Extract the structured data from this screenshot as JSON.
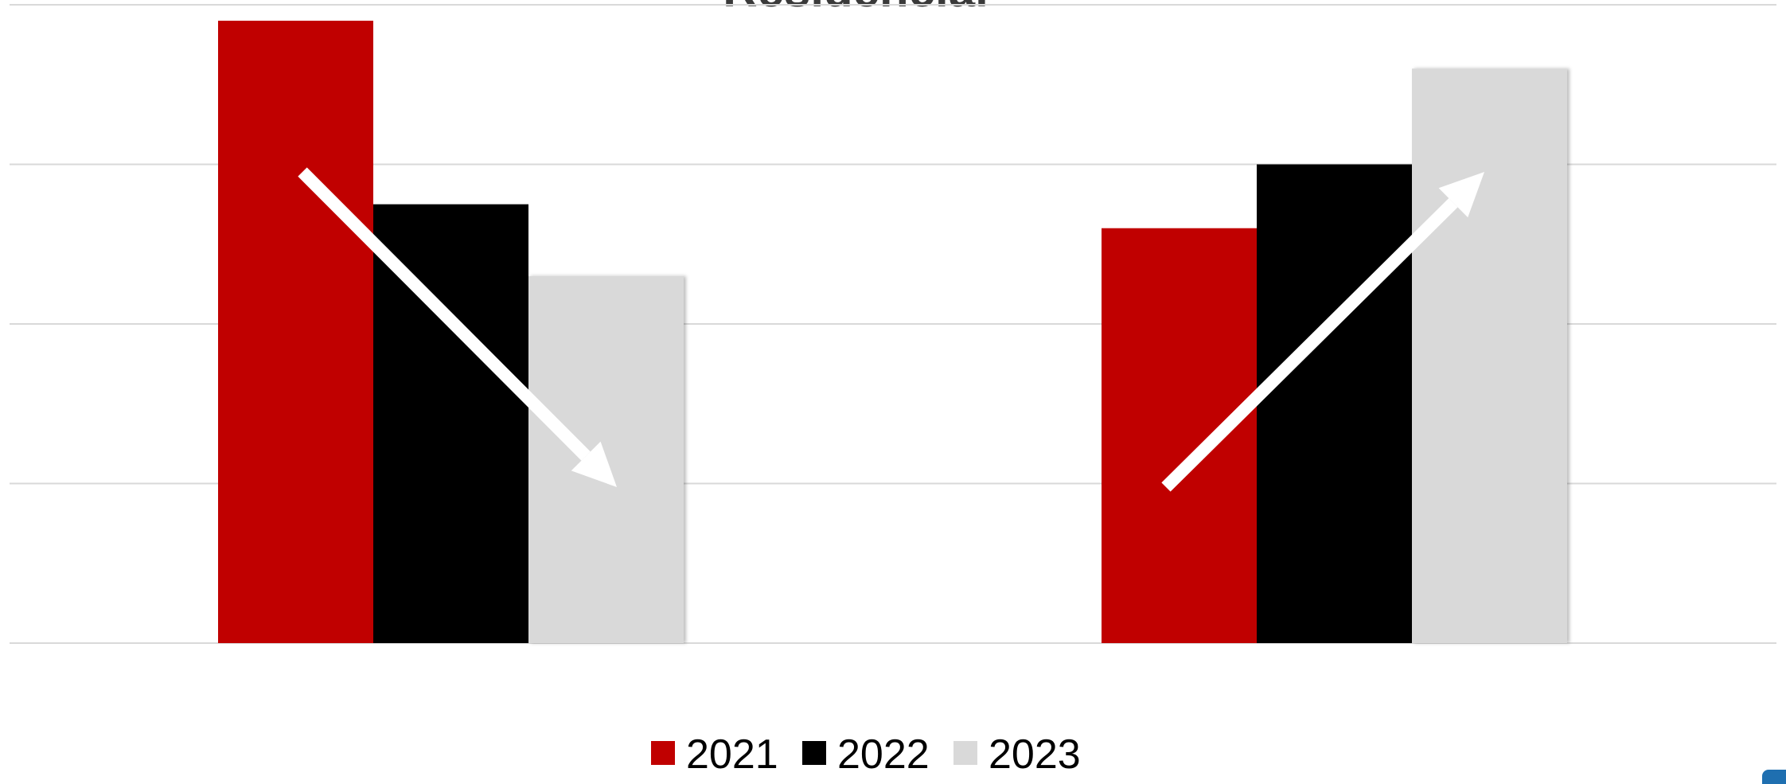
{
  "chart_data": {
    "type": "bar",
    "title": "Residencial",
    "xlabel": "",
    "ylabel": "",
    "categories": [
      "",
      ""
    ],
    "ylim": [
      0,
      4
    ],
    "grid": true,
    "legend_position": "bottom",
    "series": [
      {
        "name": "2021",
        "color": "#c00000",
        "values": [
          3.9,
          2.6
        ]
      },
      {
        "name": "2022",
        "color": "#000000",
        "values": [
          2.75,
          3.0
        ]
      },
      {
        "name": "2023",
        "color": "#d9d9d9",
        "values": [
          2.3,
          3.6
        ]
      }
    ],
    "annotations": [
      {
        "category": 0,
        "trend": "down",
        "icon": "trend-down-arrow-icon"
      },
      {
        "category": 1,
        "trend": "up",
        "icon": "trend-up-arrow-icon"
      }
    ]
  },
  "colors": {
    "gridline": "#d9d9d9",
    "arrow": "#ffffff",
    "badge": "#1f6fb0"
  }
}
